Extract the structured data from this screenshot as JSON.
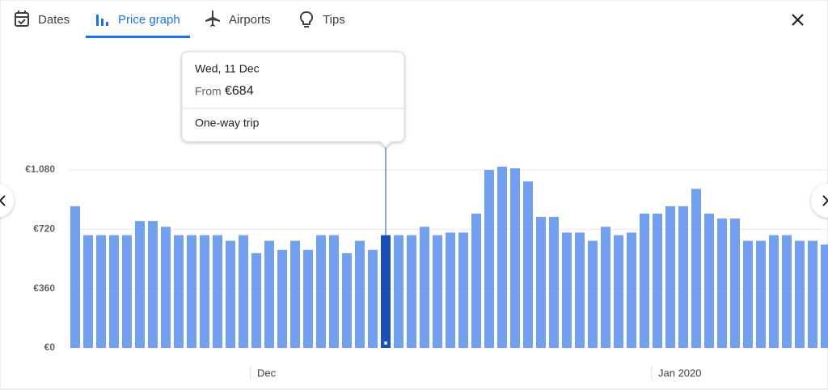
{
  "tabs": [
    "Dates",
    "Price graph",
    "Airports",
    "Tips"
  ],
  "active_tab": 1,
  "tooltip": {
    "date": "Wed, 11 Dec",
    "from": "From",
    "price": "€684",
    "trip": "One-way trip"
  },
  "chart_data": {
    "type": "bar",
    "categories": [
      null,
      null,
      null,
      null,
      null,
      null,
      null,
      null,
      null,
      null,
      null,
      null,
      null,
      null,
      "Dec",
      null,
      null,
      null,
      null,
      null,
      null,
      null,
      null,
      null,
      null,
      null,
      null,
      null,
      null,
      null,
      null,
      null,
      null,
      null,
      null,
      null,
      null,
      null,
      null,
      null,
      null,
      null,
      null,
      null,
      null,
      "Jan 2020",
      null,
      null,
      null,
      null,
      null,
      null,
      null,
      null,
      null,
      null,
      null,
      null,
      null
    ],
    "values": [
      860,
      684,
      684,
      684,
      684,
      770,
      770,
      735,
      684,
      684,
      684,
      684,
      650,
      684,
      575,
      650,
      595,
      650,
      595,
      684,
      684,
      575,
      650,
      595,
      684,
      684,
      684,
      735,
      684,
      700,
      700,
      815,
      1080,
      1100,
      1090,
      1010,
      795,
      795,
      700,
      700,
      650,
      735,
      684,
      700,
      815,
      815,
      860,
      860,
      965,
      815,
      785,
      785,
      650,
      650,
      684,
      684,
      650,
      650,
      627
    ],
    "color": "#71a0ef",
    "highlight": {
      "index": 24,
      "color": "#1a4fb3"
    },
    "ylim": [
      0,
      1080
    ],
    "yticks": [
      {
        "value": 0,
        "label": "€0"
      },
      {
        "value": 360,
        "label": "€360"
      },
      {
        "value": 720,
        "label": "€720"
      },
      {
        "value": 1080,
        "label": "€1.080"
      }
    ],
    "grid": true
  }
}
